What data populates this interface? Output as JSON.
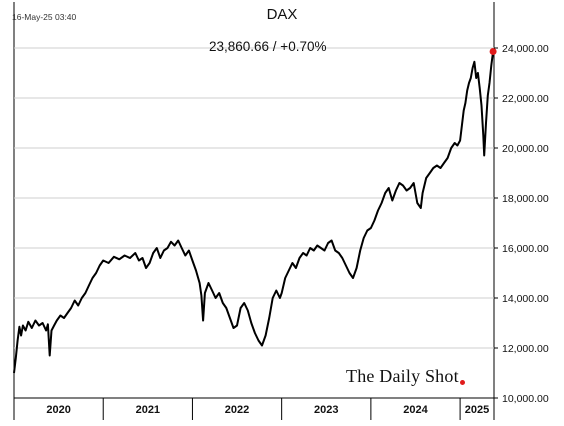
{
  "header": {
    "timestamp": "16-May-25 03:40",
    "title": "DAX",
    "readout": "23,860.66  /  +0.70%"
  },
  "watermark": {
    "text": "The Daily Shot",
    "dot_color": "#e01b1b"
  },
  "chart_data": {
    "type": "line",
    "title": "DAX",
    "ylim": [
      10000,
      24000
    ],
    "yaxis_side": "right",
    "y_ticks": [
      10000,
      12000,
      14000,
      16000,
      18000,
      20000,
      22000,
      24000
    ],
    "y_tick_labels": [
      "10,000.00",
      "12,000.00",
      "14,000.00",
      "16,000.00",
      "18,000.00",
      "20,000.00",
      "22,000.00",
      "24,000.00"
    ],
    "xlim": [
      2020.0,
      2025.38
    ],
    "x_categories": [
      "2020",
      "2021",
      "2022",
      "2023",
      "2024",
      "2025"
    ],
    "grid": true,
    "line_color": "#000000",
    "last_point_color": "#e01b1b",
    "series": [
      {
        "points": [
          [
            2020.0,
            11000
          ],
          [
            2020.02,
            11600
          ],
          [
            2020.04,
            12300
          ],
          [
            2020.06,
            12850
          ],
          [
            2020.08,
            12500
          ],
          [
            2020.1,
            12900
          ],
          [
            2020.13,
            12700
          ],
          [
            2020.16,
            13050
          ],
          [
            2020.2,
            12800
          ],
          [
            2020.24,
            13100
          ],
          [
            2020.28,
            12900
          ],
          [
            2020.32,
            13000
          ],
          [
            2020.36,
            12700
          ],
          [
            2020.38,
            12950
          ],
          [
            2020.4,
            11700
          ],
          [
            2020.42,
            12700
          ],
          [
            2020.45,
            12900
          ],
          [
            2020.48,
            13100
          ],
          [
            2020.52,
            13300
          ],
          [
            2020.56,
            13200
          ],
          [
            2020.6,
            13400
          ],
          [
            2020.64,
            13600
          ],
          [
            2020.68,
            13900
          ],
          [
            2020.72,
            13700
          ],
          [
            2020.76,
            14000
          ],
          [
            2020.8,
            14200
          ],
          [
            2020.84,
            14500
          ],
          [
            2020.88,
            14800
          ],
          [
            2020.92,
            15000
          ],
          [
            2020.96,
            15300
          ],
          [
            2021.0,
            15500
          ],
          [
            2021.06,
            15400
          ],
          [
            2021.12,
            15650
          ],
          [
            2021.18,
            15550
          ],
          [
            2021.24,
            15700
          ],
          [
            2021.3,
            15600
          ],
          [
            2021.36,
            15800
          ],
          [
            2021.4,
            15500
          ],
          [
            2021.44,
            15600
          ],
          [
            2021.48,
            15200
          ],
          [
            2021.52,
            15400
          ],
          [
            2021.56,
            15800
          ],
          [
            2021.6,
            16000
          ],
          [
            2021.64,
            15600
          ],
          [
            2021.68,
            15900
          ],
          [
            2021.72,
            16000
          ],
          [
            2021.76,
            16250
          ],
          [
            2021.8,
            16100
          ],
          [
            2021.84,
            16300
          ],
          [
            2021.88,
            16000
          ],
          [
            2021.92,
            15700
          ],
          [
            2021.96,
            15900
          ],
          [
            2022.0,
            15500
          ],
          [
            2022.04,
            15100
          ],
          [
            2022.08,
            14600
          ],
          [
            2022.1,
            14100
          ],
          [
            2022.12,
            13100
          ],
          [
            2022.14,
            14200
          ],
          [
            2022.18,
            14600
          ],
          [
            2022.22,
            14300
          ],
          [
            2022.26,
            14000
          ],
          [
            2022.3,
            14200
          ],
          [
            2022.34,
            13800
          ],
          [
            2022.38,
            13600
          ],
          [
            2022.42,
            13200
          ],
          [
            2022.46,
            12800
          ],
          [
            2022.5,
            12900
          ],
          [
            2022.54,
            13600
          ],
          [
            2022.58,
            13800
          ],
          [
            2022.62,
            13500
          ],
          [
            2022.66,
            13000
          ],
          [
            2022.7,
            12600
          ],
          [
            2022.74,
            12300
          ],
          [
            2022.78,
            12100
          ],
          [
            2022.82,
            12500
          ],
          [
            2022.86,
            13200
          ],
          [
            2022.9,
            14000
          ],
          [
            2022.94,
            14300
          ],
          [
            2022.98,
            14000
          ],
          [
            2023.0,
            14200
          ],
          [
            2023.04,
            14800
          ],
          [
            2023.08,
            15100
          ],
          [
            2023.12,
            15400
          ],
          [
            2023.16,
            15200
          ],
          [
            2023.2,
            15600
          ],
          [
            2023.24,
            15800
          ],
          [
            2023.28,
            15700
          ],
          [
            2023.32,
            16000
          ],
          [
            2023.36,
            15900
          ],
          [
            2023.4,
            16100
          ],
          [
            2023.44,
            16000
          ],
          [
            2023.48,
            15900
          ],
          [
            2023.52,
            16200
          ],
          [
            2023.56,
            16300
          ],
          [
            2023.6,
            15900
          ],
          [
            2023.64,
            15800
          ],
          [
            2023.68,
            15600
          ],
          [
            2023.72,
            15300
          ],
          [
            2023.76,
            15000
          ],
          [
            2023.8,
            14800
          ],
          [
            2023.84,
            15200
          ],
          [
            2023.88,
            15900
          ],
          [
            2023.92,
            16400
          ],
          [
            2023.96,
            16700
          ],
          [
            2024.0,
            16800
          ],
          [
            2024.04,
            17100
          ],
          [
            2024.08,
            17500
          ],
          [
            2024.12,
            17800
          ],
          [
            2024.16,
            18200
          ],
          [
            2024.2,
            18400
          ],
          [
            2024.24,
            17900
          ],
          [
            2024.28,
            18300
          ],
          [
            2024.32,
            18600
          ],
          [
            2024.36,
            18500
          ],
          [
            2024.4,
            18300
          ],
          [
            2024.44,
            18400
          ],
          [
            2024.48,
            18600
          ],
          [
            2024.52,
            17800
          ],
          [
            2024.56,
            17600
          ],
          [
            2024.58,
            18200
          ],
          [
            2024.62,
            18800
          ],
          [
            2024.66,
            19000
          ],
          [
            2024.7,
            19200
          ],
          [
            2024.74,
            19300
          ],
          [
            2024.78,
            19200
          ],
          [
            2024.82,
            19400
          ],
          [
            2024.86,
            19600
          ],
          [
            2024.9,
            20000
          ],
          [
            2024.94,
            20200
          ],
          [
            2024.97,
            20100
          ],
          [
            2025.0,
            20300
          ],
          [
            2025.02,
            20900
          ],
          [
            2025.04,
            21500
          ],
          [
            2025.06,
            21800
          ],
          [
            2025.08,
            22300
          ],
          [
            2025.1,
            22600
          ],
          [
            2025.12,
            22800
          ],
          [
            2025.14,
            23200
          ],
          [
            2025.16,
            23450
          ],
          [
            2025.18,
            22800
          ],
          [
            2025.2,
            23000
          ],
          [
            2025.22,
            22400
          ],
          [
            2025.24,
            21700
          ],
          [
            2025.26,
            20500
          ],
          [
            2025.27,
            19700
          ],
          [
            2025.29,
            21000
          ],
          [
            2025.31,
            22100
          ],
          [
            2025.33,
            22600
          ],
          [
            2025.35,
            23300
          ],
          [
            2025.37,
            23860.66
          ]
        ]
      }
    ]
  }
}
